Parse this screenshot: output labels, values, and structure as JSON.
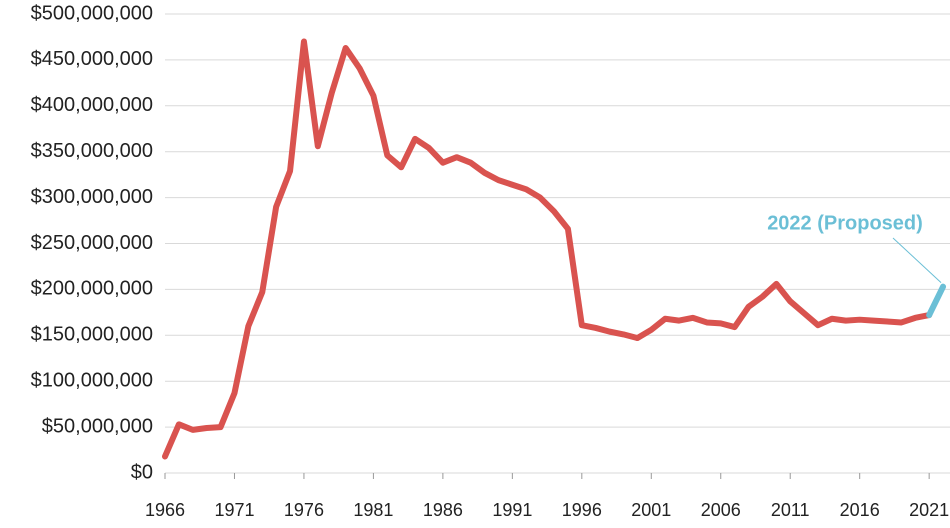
{
  "chart_data": {
    "type": "line",
    "x": [
      1966,
      1967,
      1968,
      1969,
      1970,
      1971,
      1972,
      1973,
      1974,
      1975,
      1976,
      1977,
      1978,
      1979,
      1980,
      1981,
      1982,
      1983,
      1984,
      1985,
      1986,
      1987,
      1988,
      1989,
      1990,
      1991,
      1992,
      1993,
      1994,
      1995,
      1996,
      1997,
      1998,
      1999,
      2000,
      2001,
      2002,
      2003,
      2004,
      2005,
      2006,
      2007,
      2008,
      2009,
      2010,
      2011,
      2012,
      2013,
      2014,
      2015,
      2016,
      2017,
      2018,
      2019,
      2020,
      2021,
      2022
    ],
    "series": [
      {
        "color": "#d9534f",
        "values": [
          18000000,
          53000000,
          47000000,
          49000000,
          50000000,
          87000000,
          160000000,
          197000000,
          290000000,
          329000000,
          470000000,
          356000000,
          414000000,
          463000000,
          441000000,
          411000000,
          346000000,
          333000000,
          364000000,
          354000000,
          338000000,
          344000000,
          338000000,
          327000000,
          319000000,
          314000000,
          309000000,
          300000000,
          285000000,
          266000000,
          161000000,
          158000000,
          154000000,
          151000000,
          147000000,
          156000000,
          168000000,
          166000000,
          169000000,
          164000000,
          163000000,
          159000000,
          181000000,
          192000000,
          206000000,
          187000000,
          174000000,
          161000000,
          168000000,
          166000000,
          167000000,
          166000000,
          165000000,
          164000000,
          169000000,
          172000000,
          null
        ]
      },
      {
        "color": "#6bbfd6",
        "values": [
          null,
          null,
          null,
          null,
          null,
          null,
          null,
          null,
          null,
          null,
          null,
          null,
          null,
          null,
          null,
          null,
          null,
          null,
          null,
          null,
          null,
          null,
          null,
          null,
          null,
          null,
          null,
          null,
          null,
          null,
          null,
          null,
          null,
          null,
          null,
          null,
          null,
          null,
          null,
          null,
          null,
          null,
          null,
          null,
          null,
          null,
          null,
          null,
          null,
          null,
          null,
          null,
          null,
          null,
          null,
          172000000,
          203000000
        ]
      }
    ],
    "annotation": "2022 (Proposed)",
    "xlim": [
      1966,
      2022.5
    ],
    "xticks": [
      1966,
      1971,
      1976,
      1981,
      1986,
      1991,
      1996,
      2001,
      2006,
      2011,
      2016,
      2021
    ],
    "ylim": [
      0,
      500000000
    ],
    "yticks": [
      {
        "value": 0,
        "label": "$0"
      },
      {
        "value": 50000000,
        "label": "$50,000,000"
      },
      {
        "value": 100000000,
        "label": "$100,000,000"
      },
      {
        "value": 150000000,
        "label": "$150,000,000"
      },
      {
        "value": 200000000,
        "label": "$200,000,000"
      },
      {
        "value": 250000000,
        "label": "$250,000,000"
      },
      {
        "value": 300000000,
        "label": "$300,000,000"
      },
      {
        "value": 350000000,
        "label": "$350,000,000"
      },
      {
        "value": 400000000,
        "label": "$400,000,000"
      },
      {
        "value": 450000000,
        "label": "$450,000,000"
      },
      {
        "value": 500000000,
        "label": "$500,000,000"
      }
    ],
    "grid": true
  }
}
